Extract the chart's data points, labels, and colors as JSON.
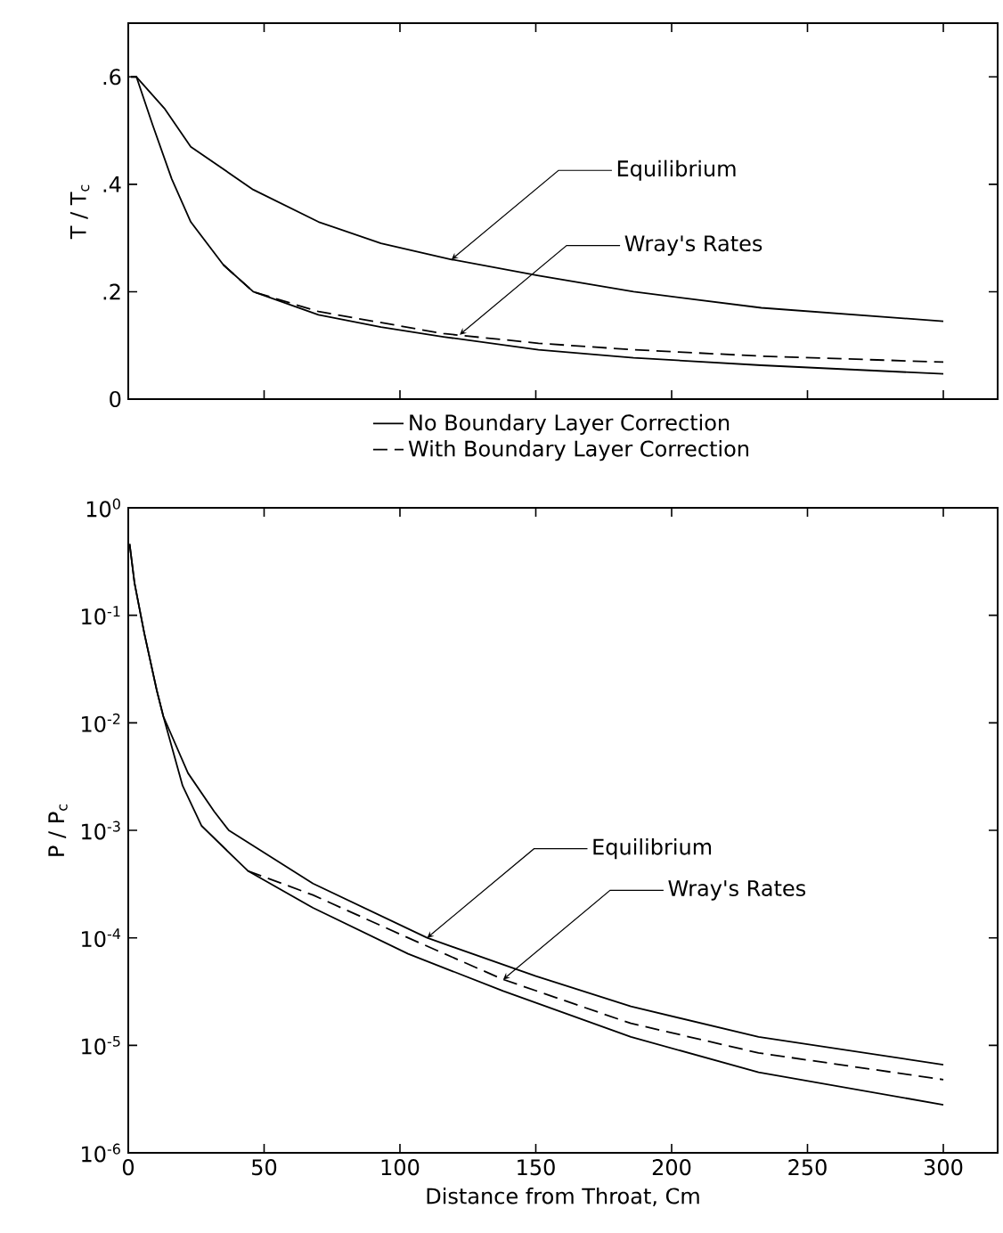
{
  "chart_data": [
    {
      "type": "line",
      "ylabel": "T / T$_{c}$",
      "xlim": [
        0,
        320
      ],
      "xticks": [
        {
          "value": 0,
          "label": null
        },
        {
          "value": 50,
          "label": null
        },
        {
          "value": 100,
          "label": null
        },
        {
          "value": 150,
          "label": null
        },
        {
          "value": 200,
          "label": null
        },
        {
          "value": 250,
          "label": null
        },
        {
          "value": 300,
          "label": null
        }
      ],
      "ylim": [
        0,
        0.7
      ],
      "yticks": [
        {
          "value": 0,
          "label": "0"
        },
        {
          "value": 0.2,
          "label": ".2"
        },
        {
          "value": 0.4,
          "label": ".4"
        },
        {
          "value": 0.6,
          "label": ".6"
        }
      ],
      "tick_labels": "y",
      "legend": "bottom",
      "marker": "none",
      "series": [
        {
          "color": "#000000",
          "line_style": "solid",
          "x": [
            1,
            3,
            13.5,
            23,
            46,
            70,
            93,
            119,
            151,
            186,
            233,
            300
          ],
          "values": [
            0.6,
            0.6,
            0.54,
            0.47,
            0.39,
            0.33,
            0.29,
            0.26,
            0.23,
            0.2,
            0.17,
            0.145
          ]
        },
        {
          "name": "No Boundary Layer Correction",
          "color": "#000000",
          "line_style": "solid",
          "x": [
            1,
            3,
            9,
            16,
            23,
            35,
            46,
            70,
            93,
            116,
            151,
            186,
            233,
            300
          ],
          "values": [
            0.6,
            0.6,
            0.51,
            0.41,
            0.33,
            0.25,
            0.2,
            0.157,
            0.134,
            0.116,
            0.092,
            0.077,
            0.063,
            0.047
          ]
        },
        {
          "name": "With Boundary Layer Correction",
          "color": "#000000",
          "line_style": "dashed",
          "x": [
            35,
            46,
            70,
            116,
            151,
            186,
            233,
            300
          ],
          "values": [
            0.25,
            0.2,
            0.163,
            0.122,
            0.104,
            0.092,
            0.08,
            0.069
          ]
        }
      ],
      "annotations": [
        {
          "text": "Equilibrium",
          "x": 119,
          "y": 0.26
        },
        {
          "text": "Wray's Rates",
          "x": 122,
          "y": 0.12
        }
      ]
    },
    {
      "type": "line",
      "xlabel": "Distance from Throat, Cm",
      "ylabel": "P / P$_{c}$",
      "log": "y",
      "xlim": [
        0,
        320
      ],
      "xticks": [
        0,
        50,
        100,
        150,
        200,
        250,
        300
      ],
      "ylim": [
        1e-06,
        1
      ],
      "yticks": [
        {
          "value": 1,
          "label": "10$^{0}$"
        },
        {
          "value": 0.1,
          "label": "10$^{-1}$"
        },
        {
          "value": 0.01,
          "label": "10$^{-2}$"
        },
        {
          "value": 0.001,
          "label": "10$^{-3}$"
        },
        {
          "value": 0.0001,
          "label": "10$^{-4}$"
        },
        {
          "value": 1e-05,
          "label": "10$^{-5}$"
        },
        {
          "value": 1e-06,
          "label": "10$^{-6}$"
        }
      ],
      "marker": "none",
      "series": [
        {
          "color": "#000000",
          "line_style": "solid",
          "x": [
            0.5,
            2.3,
            5.9,
            10.5,
            12.9,
            22,
            31.6,
            37,
            68,
            110,
            150,
            185,
            232,
            300
          ],
          "values": [
            0.46,
            0.2,
            0.068,
            0.02,
            0.0115,
            0.0034,
            0.0015,
            0.001,
            0.00032,
            0.0001,
            4.4e-05,
            2.3e-05,
            1.2e-05,
            6.6e-06
          ]
        },
        {
          "color": "#000000",
          "line_style": "solid",
          "x": [
            0.5,
            2.3,
            5.9,
            10.5,
            12.9,
            20,
            27,
            44,
            68,
            103,
            138,
            185,
            232,
            300
          ],
          "values": [
            0.46,
            0.2,
            0.068,
            0.02,
            0.0115,
            0.0026,
            0.0011,
            0.00042,
            0.00019,
            7.1e-05,
            3.2e-05,
            1.2e-05,
            5.6e-06,
            2.8e-06
          ]
        },
        {
          "color": "#000000",
          "line_style": "dashed",
          "x": [
            44,
            68,
            103,
            138,
            185,
            232,
            300
          ],
          "values": [
            0.00042,
            0.00025,
            0.0001,
            4.1e-05,
            1.6e-05,
            8.5e-06,
            4.8e-06
          ]
        }
      ],
      "annotations": [
        {
          "text": "Equilibrium",
          "x": 110,
          "y": 0.0001
        },
        {
          "text": "Wray's Rates",
          "x": 138,
          "y": 4.1e-05
        }
      ]
    }
  ]
}
